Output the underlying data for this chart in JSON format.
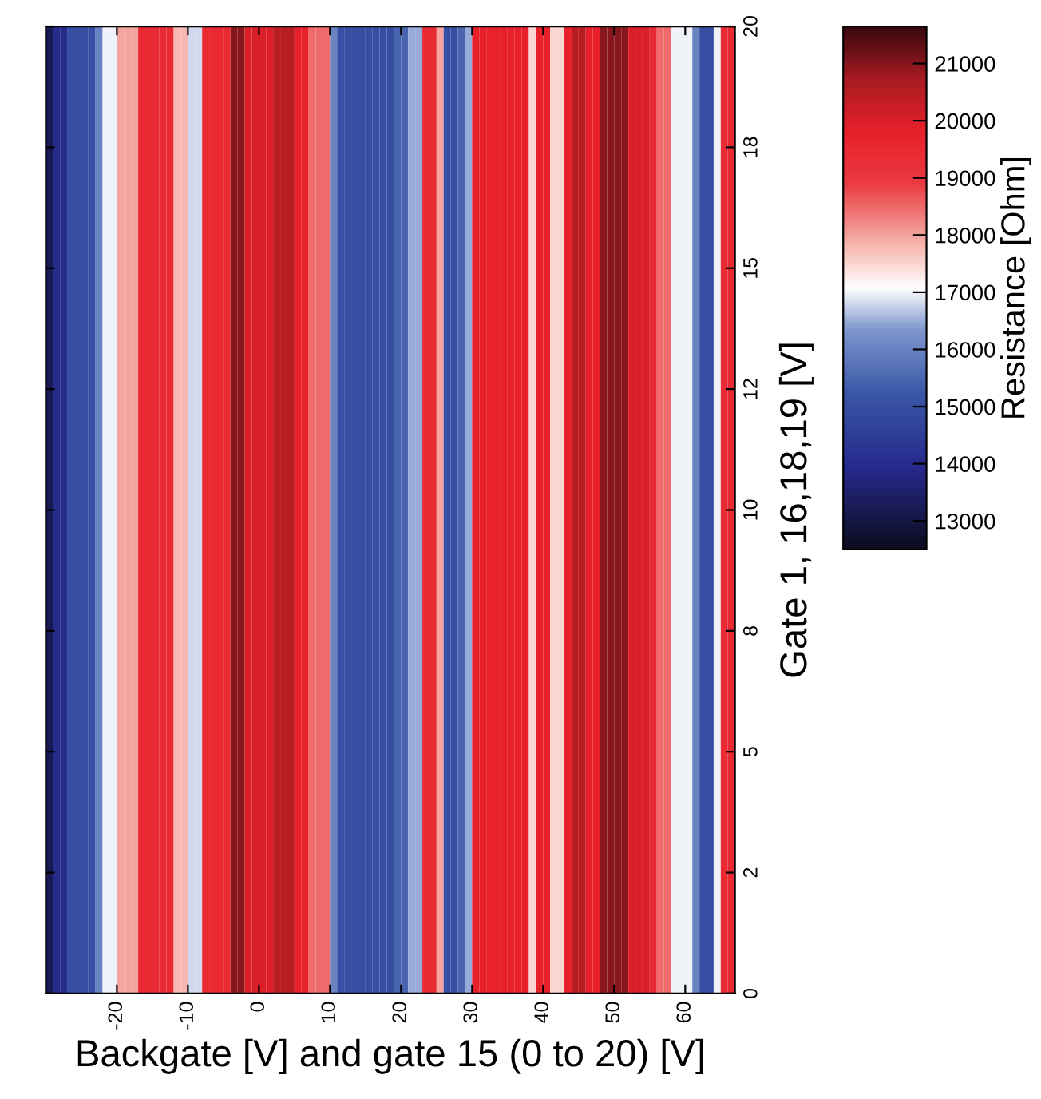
{
  "chart_data": {
    "type": "heatmap",
    "xlabel": "Backgate [V] and gate 15 (0 to 20) [V]",
    "ylabel": "Gate 1, 16,18,19 [V]",
    "clabel": "Resistance [Ohm]",
    "xlim": [
      -30,
      67
    ],
    "xticks": [
      -20,
      -10,
      0,
      10,
      20,
      30,
      40,
      50,
      60
    ],
    "ylim": [
      0,
      20
    ],
    "yticks": [
      0,
      {
        "value": 2.5,
        "label": "2"
      },
      5,
      {
        "value": 7.5,
        "label": "8"
      },
      10,
      {
        "value": 12.5,
        "label": "12"
      },
      15,
      {
        "value": 17.5,
        "label": "18"
      },
      20
    ],
    "clim": [
      12500,
      21650
    ],
    "cticks": [
      13000,
      14000,
      15000,
      16000,
      17000,
      18000,
      19000,
      20000,
      21000
    ],
    "cells": [
      [
        13200,
        14000,
        14000,
        15000,
        15000,
        15000,
        15000,
        16000,
        17000,
        17000,
        18000,
        18000,
        18000,
        19500,
        19500,
        19500,
        19500,
        19500,
        17800,
        17800,
        16800,
        16800,
        19500,
        19500,
        19500,
        19500,
        21000,
        21000,
        20000,
        20000,
        20000,
        20000,
        20500,
        20500,
        20500,
        19800,
        19800,
        18500,
        18500,
        18500,
        16000,
        15000,
        15000,
        15000,
        15000,
        15000,
        15000,
        15000,
        15000,
        15500,
        15500,
        16500,
        16500,
        19500,
        19500,
        18000,
        15000,
        15000,
        15500,
        16500,
        19800,
        19800,
        19800,
        19800,
        19800,
        19800,
        19800,
        19800,
        17500,
        19800,
        19800,
        17500,
        17500,
        19800,
        20500,
        20500,
        19800,
        19800,
        21000,
        21000,
        21000,
        21000,
        20000,
        20000,
        20000,
        19500,
        18500,
        18500,
        17000,
        17000,
        17000,
        16000,
        15000,
        15000,
        17000,
        19500,
        19500
      ]
    ]
  }
}
